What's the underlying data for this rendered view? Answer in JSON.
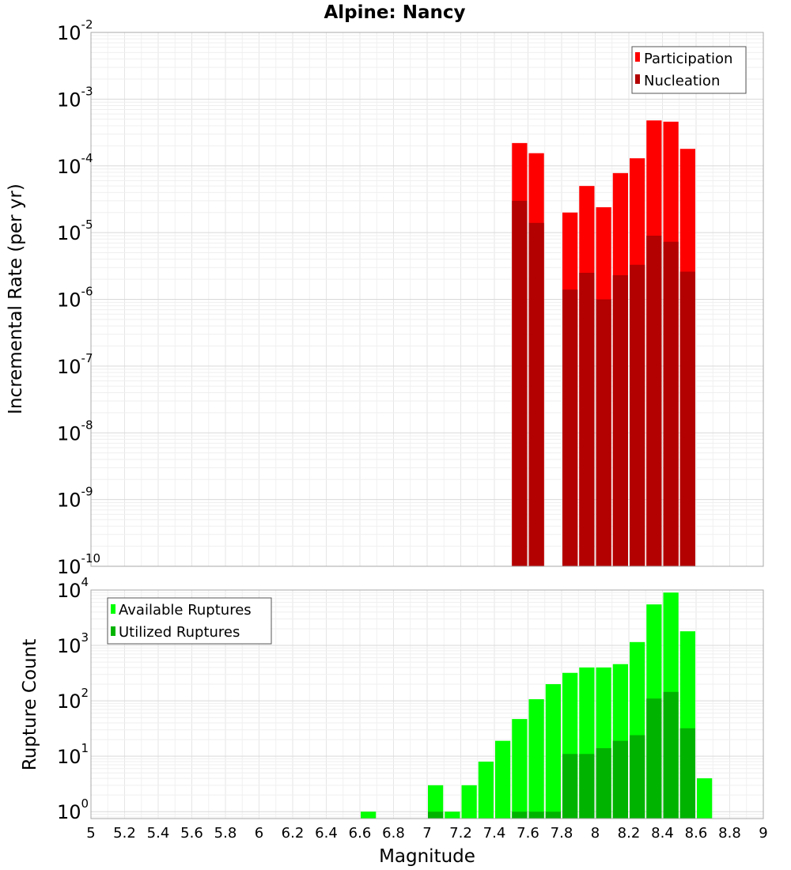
{
  "chart_data": [
    {
      "type": "bar",
      "title": "Alpine: Nancy",
      "xlabel": "Magnitude",
      "ylabel": "Incremental Rate (per yr)",
      "yscale": "log",
      "ylim": [
        1e-10,
        0.01
      ],
      "xlim": [
        5,
        9
      ],
      "grid": true,
      "legend_position": "top-right",
      "bin_width": 0.1,
      "series": [
        {
          "name": "Participation",
          "color": "#ff0000",
          "x": [
            7.55,
            7.65,
            7.85,
            7.95,
            8.05,
            8.15,
            8.25,
            8.35,
            8.45,
            8.55
          ],
          "values": [
            0.00022,
            0.000155,
            2e-05,
            5e-05,
            2.4e-05,
            7.8e-05,
            0.00013,
            0.00048,
            0.00046,
            0.00018
          ]
        },
        {
          "name": "Nucleation",
          "color": "#b30000",
          "x": [
            7.55,
            7.65,
            7.85,
            7.95,
            8.05,
            8.15,
            8.25,
            8.35,
            8.45,
            8.55
          ],
          "values": [
            3e-05,
            1.4e-05,
            1.4e-06,
            2.5e-06,
            1e-06,
            2.3e-06,
            3.3e-06,
            9e-06,
            7.3e-06,
            2.6e-06
          ]
        }
      ],
      "x_ticks": [
        "5",
        "5.2",
        "5.4",
        "5.6",
        "5.8",
        "6",
        "6.2",
        "6.4",
        "6.6",
        "6.8",
        "7",
        "7.2",
        "7.4",
        "7.6",
        "7.8",
        "8",
        "8.2",
        "8.4",
        "8.6",
        "8.8",
        "9"
      ],
      "y_ticks": [
        {
          "base": "10",
          "exp": "-10",
          "value": 1e-10
        },
        {
          "base": "10",
          "exp": "-9",
          "value": 1e-09
        },
        {
          "base": "10",
          "exp": "-8",
          "value": 1e-08
        },
        {
          "base": "10",
          "exp": "-7",
          "value": 1e-07
        },
        {
          "base": "10",
          "exp": "-6",
          "value": 1e-06
        },
        {
          "base": "10",
          "exp": "-5",
          "value": 1e-05
        },
        {
          "base": "10",
          "exp": "-4",
          "value": 0.0001
        },
        {
          "base": "10",
          "exp": "-3",
          "value": 0.001
        },
        {
          "base": "10",
          "exp": "-2",
          "value": 0.01
        }
      ]
    },
    {
      "type": "bar",
      "title": "",
      "xlabel": "Magnitude",
      "ylabel": "Rupture Count",
      "yscale": "log",
      "ylim": [
        0.75,
        10000
      ],
      "xlim": [
        5,
        9
      ],
      "grid": true,
      "legend_position": "top-left",
      "bin_width": 0.1,
      "series": [
        {
          "name": "Available Ruptures",
          "color": "#00ff00",
          "x": [
            6.65,
            7.05,
            7.15,
            7.25,
            7.35,
            7.45,
            7.55,
            7.65,
            7.75,
            7.85,
            7.95,
            8.05,
            8.15,
            8.25,
            8.35,
            8.45,
            8.55,
            8.65
          ],
          "values": [
            1,
            3,
            1,
            3,
            8,
            19,
            47,
            107,
            200,
            320,
            400,
            400,
            460,
            1150,
            5500,
            9000,
            1800,
            4
          ]
        },
        {
          "name": "Utilized Ruptures",
          "color": "#00b300",
          "x": [
            7.05,
            7.55,
            7.65,
            7.75,
            7.85,
            7.95,
            8.05,
            8.15,
            8.25,
            8.35,
            8.45,
            8.55
          ],
          "values": [
            1,
            1,
            1,
            1,
            11,
            11,
            14,
            19,
            24,
            110,
            145,
            32
          ]
        }
      ],
      "x_ticks": [
        "5",
        "5.2",
        "5.4",
        "5.6",
        "5.8",
        "6",
        "6.2",
        "6.4",
        "6.6",
        "6.8",
        "7",
        "7.2",
        "7.4",
        "7.6",
        "7.8",
        "8",
        "8.2",
        "8.4",
        "8.6",
        "8.8",
        "9"
      ],
      "y_ticks": [
        {
          "base": "10",
          "exp": "0",
          "value": 1
        },
        {
          "base": "10",
          "exp": "1",
          "value": 10
        },
        {
          "base": "10",
          "exp": "2",
          "value": 100
        },
        {
          "base": "10",
          "exp": "3",
          "value": 1000
        },
        {
          "base": "10",
          "exp": "4",
          "value": 10000
        }
      ]
    }
  ]
}
